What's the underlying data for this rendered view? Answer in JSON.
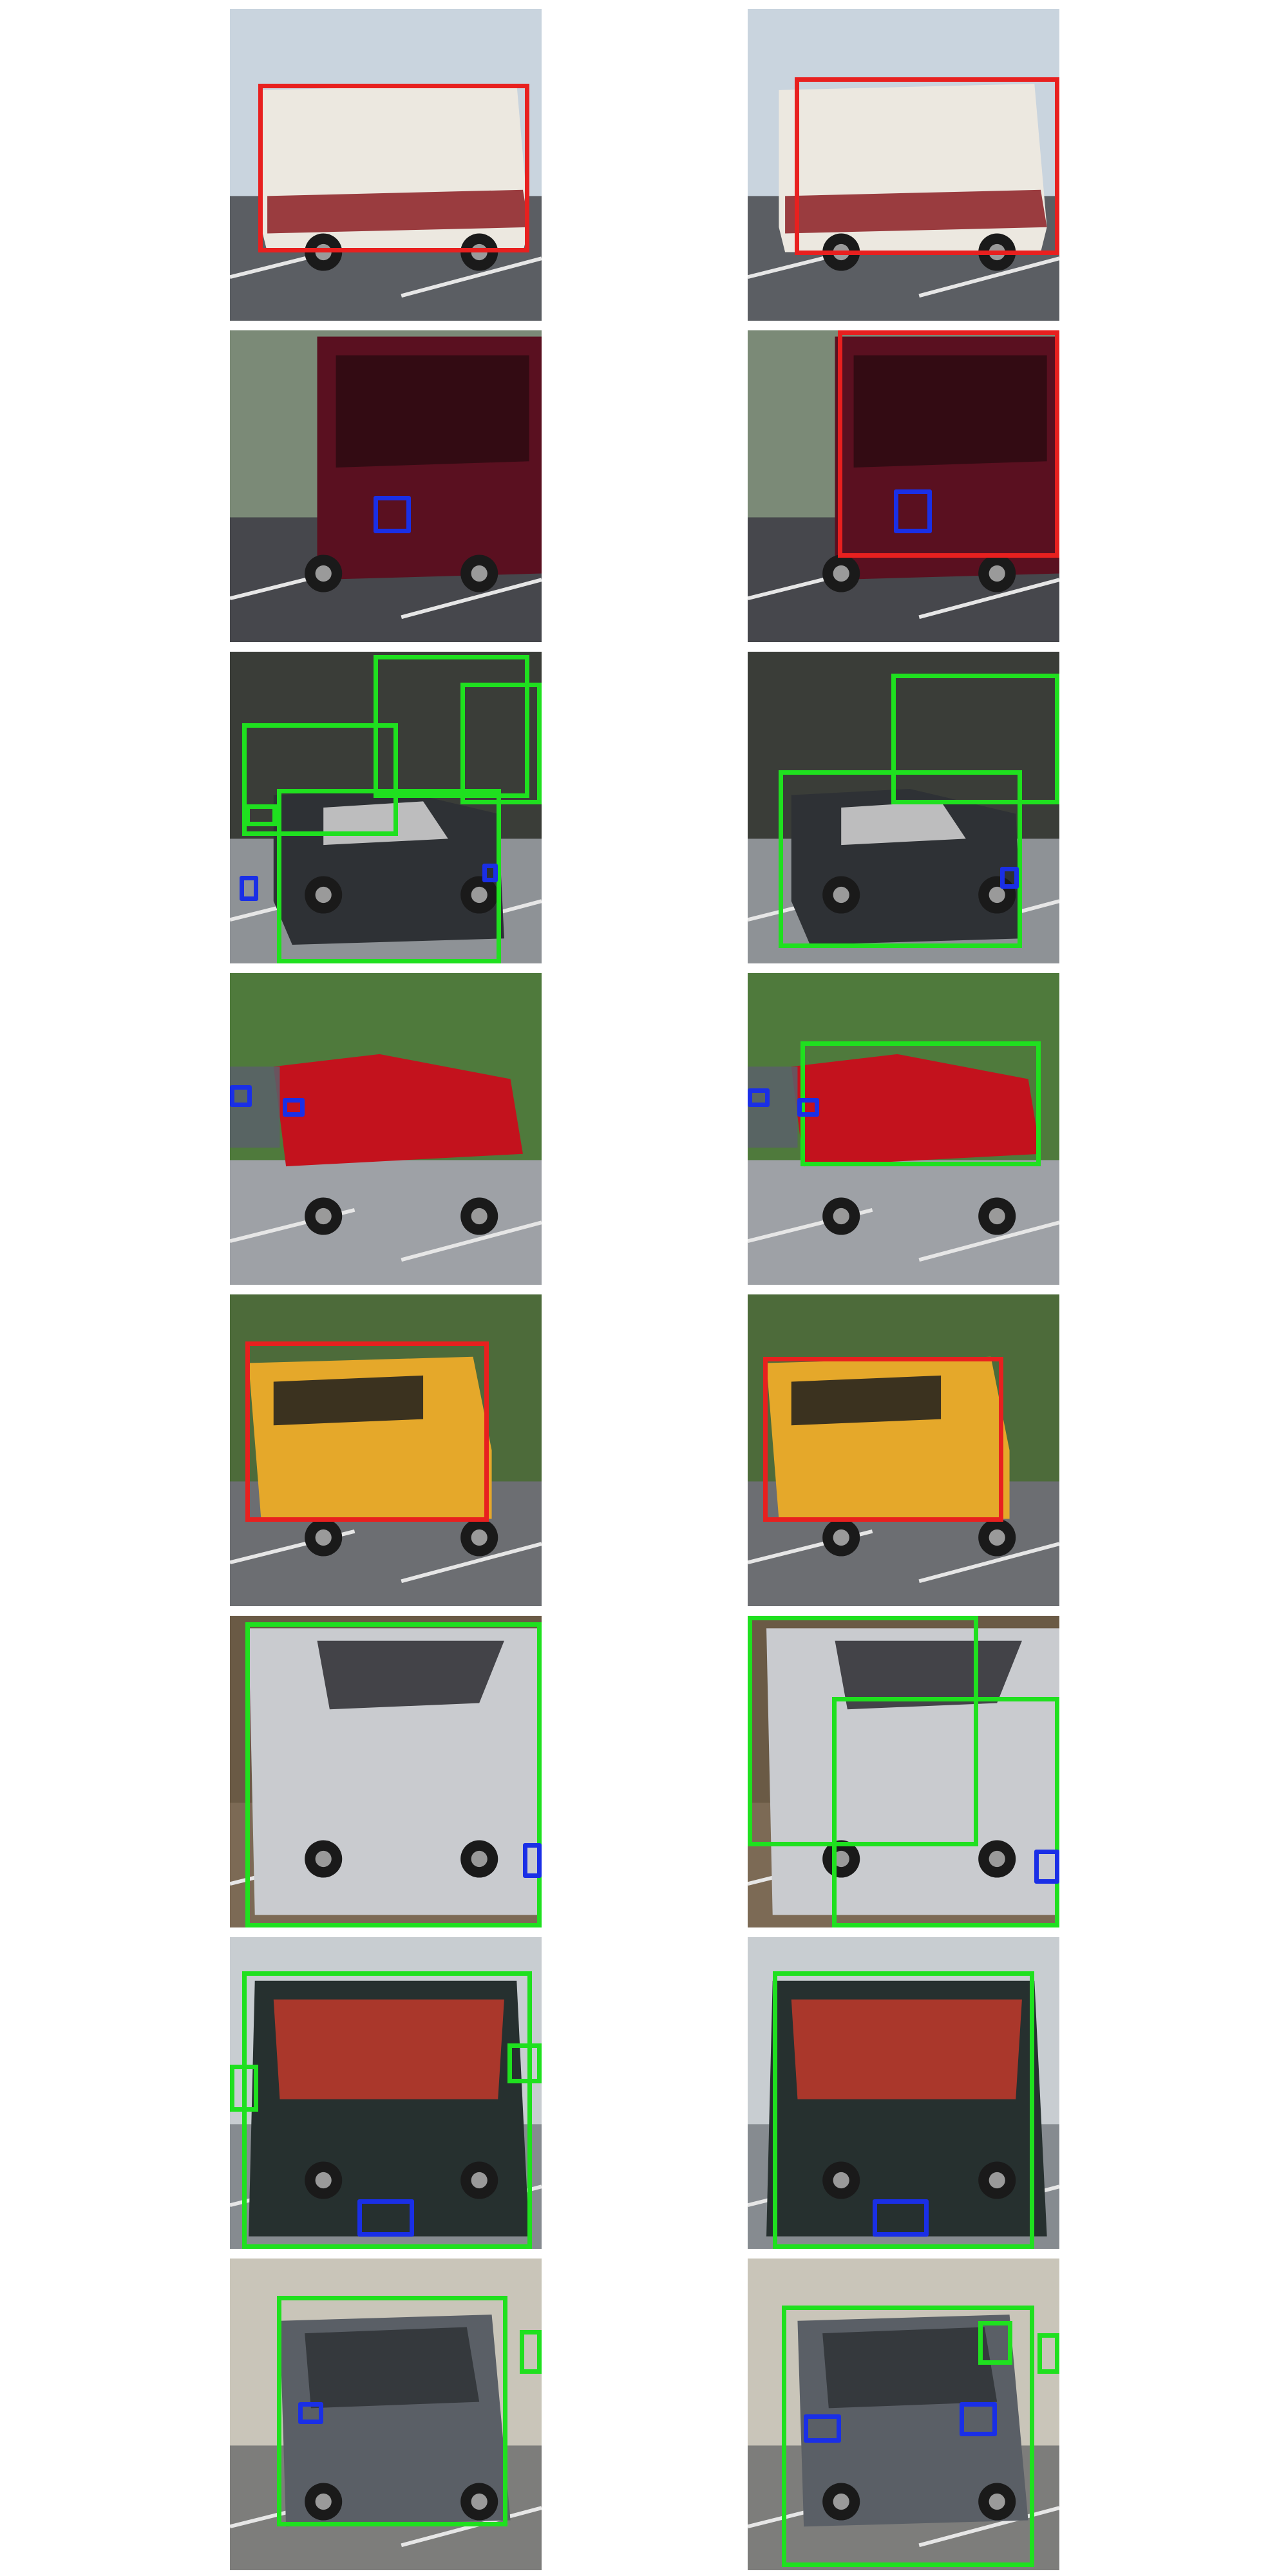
{
  "figure": {
    "columns": [
      "left",
      "right"
    ],
    "rows": 8
  },
  "colors": {
    "bus": "#e8201f",
    "car": "#1fe01f",
    "plate": "#1a2fe6"
  },
  "scenes": [
    {
      "id": "bus-city",
      "sky": "#c9d4de",
      "ground": "#5b5e63",
      "body": "#ece8e0",
      "accent": "#8c1d22"
    },
    {
      "id": "maroon-van",
      "sky": "#7b8a77",
      "ground": "#46474c",
      "body": "#5a1020",
      "accent": "#2d0a12"
    },
    {
      "id": "parking-lot",
      "sky": "#3a3d38",
      "ground": "#8e9296",
      "body": "#2e3135",
      "accent": "#d6d6d6"
    },
    {
      "id": "red-sedan",
      "sky": "#4f7a3c",
      "ground": "#9ea1a6",
      "body": "#c3121d",
      "accent": "#59606a"
    },
    {
      "id": "school-bus",
      "sky": "#4d6b3a",
      "ground": "#6c6e72",
      "body": "#e5a82a",
      "accent": "#1d1d1d"
    },
    {
      "id": "silver-corolla",
      "sky": "#6a5a45",
      "ground": "#7c6a55",
      "body": "#c9cbcf",
      "accent": "#2b2c30"
    },
    {
      "id": "green-van",
      "sky": "#c8cdd1",
      "ground": "#868b90",
      "body": "#26302f",
      "accent": "#c2382a"
    },
    {
      "id": "police-suv",
      "sky": "#c9c5b9",
      "ground": "#7d7d7b",
      "body": "#5a5f66",
      "accent": "#2f3236"
    }
  ],
  "detections": {
    "left": [
      [
        {
          "cls": "bus",
          "b": [
            0.09,
            0.24,
            0.96,
            0.78
          ]
        }
      ],
      [
        {
          "cls": "plate",
          "b": [
            0.46,
            0.53,
            0.58,
            0.65
          ]
        }
      ],
      [
        {
          "cls": "car",
          "b": [
            0.04,
            0.23,
            0.54,
            0.59
          ]
        },
        {
          "cls": "car",
          "b": [
            0.46,
            0.01,
            0.96,
            0.47
          ]
        },
        {
          "cls": "car",
          "b": [
            0.74,
            0.1,
            1.0,
            0.49
          ]
        },
        {
          "cls": "car",
          "b": [
            0.15,
            0.44,
            0.87,
            1.0
          ]
        },
        {
          "cls": "car",
          "b": [
            0.05,
            0.49,
            0.15,
            0.56
          ]
        },
        {
          "cls": "plate",
          "b": [
            0.03,
            0.72,
            0.09,
            0.8
          ]
        },
        {
          "cls": "plate",
          "b": [
            0.81,
            0.68,
            0.86,
            0.74
          ]
        }
      ],
      [
        {
          "cls": "plate",
          "b": [
            0.0,
            0.36,
            0.07,
            0.43
          ]
        },
        {
          "cls": "plate",
          "b": [
            0.17,
            0.4,
            0.24,
            0.46
          ]
        }
      ],
      [
        {
          "cls": "bus",
          "b": [
            0.05,
            0.15,
            0.83,
            0.73
          ]
        }
      ],
      [
        {
          "cls": "car",
          "b": [
            0.05,
            0.02,
            1.0,
            1.0
          ]
        },
        {
          "cls": "plate",
          "b": [
            0.94,
            0.73,
            1.0,
            0.84
          ]
        }
      ],
      [
        {
          "cls": "car",
          "b": [
            0.04,
            0.11,
            0.97,
            1.0
          ]
        },
        {
          "cls": "car",
          "b": [
            0.0,
            0.41,
            0.09,
            0.56
          ]
        },
        {
          "cls": "car",
          "b": [
            0.89,
            0.34,
            1.0,
            0.47
          ]
        },
        {
          "cls": "plate",
          "b": [
            0.41,
            0.84,
            0.59,
            0.96
          ]
        }
      ],
      [
        {
          "cls": "car",
          "b": [
            0.15,
            0.12,
            0.89,
            0.86
          ]
        },
        {
          "cls": "car",
          "b": [
            0.93,
            0.23,
            1.0,
            0.37
          ]
        },
        {
          "cls": "plate",
          "b": [
            0.22,
            0.46,
            0.3,
            0.53
          ]
        }
      ]
    ],
    "right": [
      [
        {
          "cls": "bus",
          "b": [
            0.15,
            0.22,
            1.0,
            0.79
          ]
        }
      ],
      [
        {
          "cls": "bus",
          "b": [
            0.29,
            0.0,
            1.0,
            0.73
          ]
        },
        {
          "cls": "plate",
          "b": [
            0.47,
            0.51,
            0.59,
            0.65
          ]
        }
      ],
      [
        {
          "cls": "car",
          "b": [
            0.46,
            0.07,
            1.0,
            0.49
          ]
        },
        {
          "cls": "car",
          "b": [
            0.1,
            0.38,
            0.88,
            0.95
          ]
        },
        {
          "cls": "plate",
          "b": [
            0.81,
            0.69,
            0.87,
            0.76
          ]
        }
      ],
      [
        {
          "cls": "car",
          "b": [
            0.17,
            0.22,
            0.94,
            0.62
          ]
        },
        {
          "cls": "plate",
          "b": [
            0.0,
            0.37,
            0.07,
            0.43
          ]
        },
        {
          "cls": "plate",
          "b": [
            0.16,
            0.4,
            0.23,
            0.46
          ]
        }
      ],
      [
        {
          "cls": "bus",
          "b": [
            0.05,
            0.2,
            0.82,
            0.73
          ]
        }
      ],
      [
        {
          "cls": "car",
          "b": [
            0.27,
            0.26,
            1.0,
            1.0
          ]
        },
        {
          "cls": "car",
          "b": [
            0.0,
            0.0,
            0.74,
            0.74
          ]
        },
        {
          "cls": "plate",
          "b": [
            0.92,
            0.75,
            1.0,
            0.86
          ]
        }
      ],
      [
        {
          "cls": "car",
          "b": [
            0.08,
            0.11,
            0.92,
            1.0
          ]
        },
        {
          "cls": "plate",
          "b": [
            0.4,
            0.84,
            0.58,
            0.96
          ]
        }
      ],
      [
        {
          "cls": "car",
          "b": [
            0.11,
            0.15,
            0.92,
            0.99
          ]
        },
        {
          "cls": "car",
          "b": [
            0.74,
            0.2,
            0.85,
            0.34
          ]
        },
        {
          "cls": "car",
          "b": [
            0.93,
            0.24,
            1.0,
            0.37
          ]
        },
        {
          "cls": "plate",
          "b": [
            0.18,
            0.5,
            0.3,
            0.59
          ]
        },
        {
          "cls": "plate",
          "b": [
            0.68,
            0.46,
            0.8,
            0.57
          ]
        }
      ]
    ]
  }
}
